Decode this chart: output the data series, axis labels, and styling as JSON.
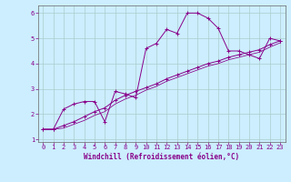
{
  "xlabel": "Windchill (Refroidissement éolien,°C)",
  "bg_color": "#cceeff",
  "line_color": "#880088",
  "grid_color": "#aacccc",
  "x_data": [
    0,
    1,
    2,
    3,
    4,
    5,
    6,
    7,
    8,
    9,
    10,
    11,
    12,
    13,
    14,
    15,
    16,
    17,
    18,
    19,
    20,
    21,
    22,
    23
  ],
  "y_zigzag": [
    1.4,
    1.4,
    2.2,
    2.4,
    2.5,
    2.5,
    1.7,
    2.9,
    2.8,
    2.65,
    4.6,
    4.8,
    5.35,
    5.2,
    6.0,
    6.0,
    5.8,
    5.4,
    4.5,
    4.5,
    4.35,
    4.2,
    5.0,
    4.9
  ],
  "y_trend1": [
    1.4,
    1.4,
    1.55,
    1.7,
    1.9,
    2.1,
    2.25,
    2.55,
    2.75,
    2.9,
    3.05,
    3.2,
    3.4,
    3.55,
    3.7,
    3.85,
    4.0,
    4.1,
    4.25,
    4.35,
    4.45,
    4.55,
    4.75,
    4.9
  ],
  "y_trend2": [
    1.4,
    1.4,
    1.45,
    1.6,
    1.75,
    1.95,
    2.1,
    2.4,
    2.6,
    2.75,
    2.95,
    3.1,
    3.3,
    3.45,
    3.6,
    3.75,
    3.9,
    4.0,
    4.15,
    4.25,
    4.35,
    4.45,
    4.65,
    4.82
  ],
  "ylim_min": 0.9,
  "ylim_max": 6.3,
  "xlim_min": -0.5,
  "xlim_max": 23.5,
  "yticks": [
    1,
    2,
    3,
    4,
    5,
    6
  ],
  "xticks": [
    0,
    1,
    2,
    3,
    4,
    5,
    6,
    7,
    8,
    9,
    10,
    11,
    12,
    13,
    14,
    15,
    16,
    17,
    18,
    19,
    20,
    21,
    22,
    23
  ],
  "xlabel_fontsize": 5.5,
  "tick_fontsize": 5.0,
  "linewidth": 0.7,
  "markersize": 2.5
}
